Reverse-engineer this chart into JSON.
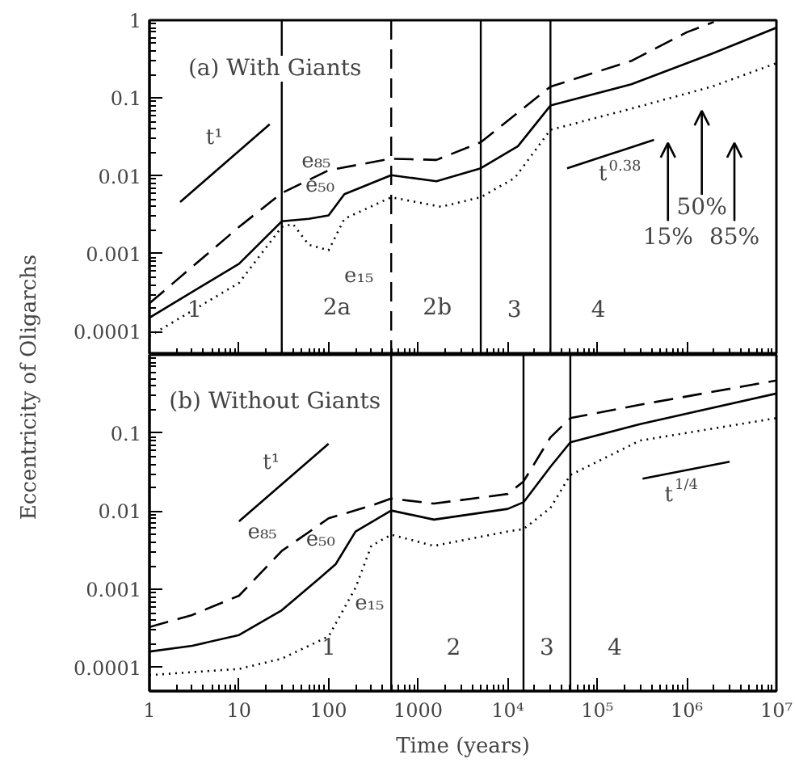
{
  "chart_data": [
    {
      "type": "line",
      "title": "(a) With Giants",
      "ylabel": "Eccentricity of Oligarchs",
      "log": "xy",
      "grid": false,
      "tick_labels": "y",
      "xlim": [
        1,
        10000000
      ],
      "ylim": [
        5e-05,
        1
      ],
      "xticks": [
        1,
        10,
        100,
        1000,
        {
          "value": 10000,
          "label": "10⁴"
        },
        {
          "value": 100000,
          "label": "10⁵"
        },
        {
          "value": 1000000,
          "label": "10⁶"
        },
        {
          "value": 10000000,
          "label": "10⁷"
        }
      ],
      "yticks": [
        1,
        0.1,
        0.01,
        0.001,
        0.0001
      ],
      "series": [
        {
          "name": "e₈₅",
          "color": "#000000",
          "line_style": "dashed",
          "x": [
            1,
            10,
            30,
            100,
            500,
            1600,
            5000,
            30000,
            240000,
            1000000,
            2000000
          ],
          "values": [
            0.00023,
            0.0022,
            0.006,
            0.0118,
            0.0166,
            0.016,
            0.027,
            0.14,
            0.3,
            0.7,
            0.95
          ]
        },
        {
          "name": "e₅₀",
          "color": "#000000",
          "line_style": "solid",
          "x": [
            1,
            10,
            30,
            60,
            100,
            150,
            500,
            1600,
            5000,
            13000,
            30000,
            240000,
            1900000,
            10000000
          ],
          "values": [
            0.00015,
            0.00074,
            0.0026,
            0.0028,
            0.0031,
            0.0058,
            0.0102,
            0.0085,
            0.0125,
            0.024,
            0.08,
            0.15,
            0.37,
            0.8
          ]
        },
        {
          "name": "e₁₅",
          "color": "#000000",
          "line_style": "dotted",
          "x": [
            1,
            10,
            30,
            40,
            60,
            100,
            150,
            500,
            1800,
            5000,
            12000,
            30000,
            240000,
            1900000,
            10000000
          ],
          "values": [
            8.7e-05,
            0.00042,
            0.0022,
            0.0024,
            0.0013,
            0.0011,
            0.0028,
            0.0053,
            0.004,
            0.0053,
            0.0094,
            0.039,
            0.073,
            0.14,
            0.28
          ]
        },
        {
          "name": "t¹",
          "type": "line",
          "color": "#000000",
          "line_style": "solid",
          "x": [
            2.2,
            22
          ],
          "values": [
            0.0046,
            0.046
          ]
        },
        {
          "name": "t$^{0.38}$",
          "type": "line",
          "color": "#000000",
          "line_style": "solid",
          "x": [
            46000,
            430000
          ],
          "values": [
            0.0125,
            0.029
          ]
        }
      ],
      "ref_lines": [
        {
          "axis": "x",
          "value": 30,
          "line_style": "solid"
        },
        {
          "axis": "x",
          "value": 500,
          "line_style": "dashed"
        },
        {
          "axis": "x",
          "value": 5000,
          "line_style": "solid"
        },
        {
          "axis": "x",
          "value": 30000,
          "line_style": "solid"
        }
      ],
      "annotations": [
        "15%",
        "50%",
        "85%",
        "1",
        "2a",
        "2b",
        "3",
        "4"
      ]
    },
    {
      "type": "line",
      "title": "(b) Without Giants",
      "xlabel": "Time (years)",
      "log": "xy",
      "grid": false,
      "xlim": [
        1,
        10000000
      ],
      "ylim": [
        5e-05,
        1
      ],
      "xticks": [
        1,
        10,
        100,
        1000,
        {
          "value": 10000,
          "label": "10⁴"
        },
        {
          "value": 100000,
          "label": "10⁵"
        },
        {
          "value": 1000000,
          "label": "10⁶"
        },
        {
          "value": 10000000,
          "label": "10⁷"
        }
      ],
      "yticks": [
        {
          "value": 1,
          "label": null
        },
        0.1,
        0.01,
        0.001,
        0.0001
      ],
      "series": [
        {
          "name": "e₈₅",
          "color": "#000000",
          "line_style": "dashed",
          "x": [
            1,
            3,
            10,
            30,
            100,
            300,
            500,
            1500,
            10000,
            15000,
            30000,
            50000,
            300000,
            10000000
          ],
          "values": [
            0.00033,
            0.00047,
            0.00083,
            0.0031,
            0.0081,
            0.0118,
            0.0145,
            0.0125,
            0.0166,
            0.024,
            0.088,
            0.155,
            0.23,
            0.47
          ]
        },
        {
          "name": "e₅₀",
          "color": "#000000",
          "line_style": "solid",
          "x": [
            1,
            3,
            10,
            30,
            80,
            120,
            200,
            500,
            1500,
            10000,
            15000,
            30000,
            50000,
            300000,
            10000000
          ],
          "values": [
            0.00016,
            0.00019,
            0.00026,
            0.00054,
            0.0014,
            0.0021,
            0.0055,
            0.0102,
            0.0078,
            0.0107,
            0.013,
            0.037,
            0.076,
            0.13,
            0.32
          ]
        },
        {
          "name": "e₁₅",
          "color": "#000000",
          "line_style": "dotted",
          "x": [
            1,
            10,
            30,
            100,
            200,
            300,
            500,
            1500,
            10000,
            15000,
            30000,
            50000,
            300000,
            10000000
          ],
          "values": [
            8e-05,
            9.6e-05,
            0.00013,
            0.00025,
            0.00105,
            0.0036,
            0.005,
            0.0036,
            0.0055,
            0.0059,
            0.011,
            0.029,
            0.08,
            0.155
          ]
        },
        {
          "name": "t¹",
          "type": "line",
          "color": "#000000",
          "line_style": "solid",
          "x": [
            10,
            100
          ],
          "values": [
            0.0074,
            0.073
          ]
        },
        {
          "name": "t$^{1/4}$",
          "type": "line",
          "color": "#000000",
          "line_style": "solid",
          "x": [
            320000,
            3000000
          ],
          "values": [
            0.026,
            0.043
          ]
        }
      ],
      "ref_lines": [
        {
          "axis": "x",
          "value": 500,
          "line_style": "solid"
        },
        {
          "axis": "x",
          "value": 15000,
          "line_style": "solid"
        },
        {
          "axis": "x",
          "value": 50000,
          "line_style": "solid"
        }
      ],
      "annotations": [
        "1",
        "2",
        "3",
        "4"
      ]
    }
  ]
}
